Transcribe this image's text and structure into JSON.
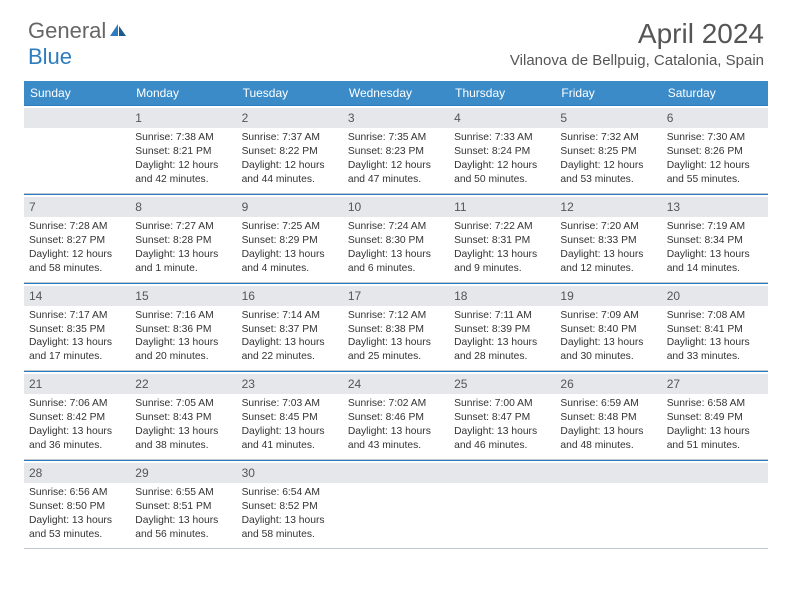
{
  "logo": {
    "text1": "General",
    "text2": "Blue"
  },
  "title": {
    "month": "April 2024",
    "location": "Vilanova de Bellpuig, Catalonia, Spain"
  },
  "colors": {
    "header_bg": "#3b8bc9",
    "header_text": "#ffffff",
    "week_top_border": "#2e7cc0",
    "week_bottom_border": "#bfc8d0",
    "num_band_bg": "#e5e7ea",
    "body_text": "#333333",
    "logo_blue": "#2e7cc0"
  },
  "days_of_week": [
    "Sunday",
    "Monday",
    "Tuesday",
    "Wednesday",
    "Thursday",
    "Friday",
    "Saturday"
  ],
  "weeks": [
    [
      {
        "n": "",
        "sr": "",
        "ss": "",
        "dl1": "",
        "dl2": ""
      },
      {
        "n": "1",
        "sr": "Sunrise: 7:38 AM",
        "ss": "Sunset: 8:21 PM",
        "dl1": "Daylight: 12 hours",
        "dl2": "and 42 minutes."
      },
      {
        "n": "2",
        "sr": "Sunrise: 7:37 AM",
        "ss": "Sunset: 8:22 PM",
        "dl1": "Daylight: 12 hours",
        "dl2": "and 44 minutes."
      },
      {
        "n": "3",
        "sr": "Sunrise: 7:35 AM",
        "ss": "Sunset: 8:23 PM",
        "dl1": "Daylight: 12 hours",
        "dl2": "and 47 minutes."
      },
      {
        "n": "4",
        "sr": "Sunrise: 7:33 AM",
        "ss": "Sunset: 8:24 PM",
        "dl1": "Daylight: 12 hours",
        "dl2": "and 50 minutes."
      },
      {
        "n": "5",
        "sr": "Sunrise: 7:32 AM",
        "ss": "Sunset: 8:25 PM",
        "dl1": "Daylight: 12 hours",
        "dl2": "and 53 minutes."
      },
      {
        "n": "6",
        "sr": "Sunrise: 7:30 AM",
        "ss": "Sunset: 8:26 PM",
        "dl1": "Daylight: 12 hours",
        "dl2": "and 55 minutes."
      }
    ],
    [
      {
        "n": "7",
        "sr": "Sunrise: 7:28 AM",
        "ss": "Sunset: 8:27 PM",
        "dl1": "Daylight: 12 hours",
        "dl2": "and 58 minutes."
      },
      {
        "n": "8",
        "sr": "Sunrise: 7:27 AM",
        "ss": "Sunset: 8:28 PM",
        "dl1": "Daylight: 13 hours",
        "dl2": "and 1 minute."
      },
      {
        "n": "9",
        "sr": "Sunrise: 7:25 AM",
        "ss": "Sunset: 8:29 PM",
        "dl1": "Daylight: 13 hours",
        "dl2": "and 4 minutes."
      },
      {
        "n": "10",
        "sr": "Sunrise: 7:24 AM",
        "ss": "Sunset: 8:30 PM",
        "dl1": "Daylight: 13 hours",
        "dl2": "and 6 minutes."
      },
      {
        "n": "11",
        "sr": "Sunrise: 7:22 AM",
        "ss": "Sunset: 8:31 PM",
        "dl1": "Daylight: 13 hours",
        "dl2": "and 9 minutes."
      },
      {
        "n": "12",
        "sr": "Sunrise: 7:20 AM",
        "ss": "Sunset: 8:33 PM",
        "dl1": "Daylight: 13 hours",
        "dl2": "and 12 minutes."
      },
      {
        "n": "13",
        "sr": "Sunrise: 7:19 AM",
        "ss": "Sunset: 8:34 PM",
        "dl1": "Daylight: 13 hours",
        "dl2": "and 14 minutes."
      }
    ],
    [
      {
        "n": "14",
        "sr": "Sunrise: 7:17 AM",
        "ss": "Sunset: 8:35 PM",
        "dl1": "Daylight: 13 hours",
        "dl2": "and 17 minutes."
      },
      {
        "n": "15",
        "sr": "Sunrise: 7:16 AM",
        "ss": "Sunset: 8:36 PM",
        "dl1": "Daylight: 13 hours",
        "dl2": "and 20 minutes."
      },
      {
        "n": "16",
        "sr": "Sunrise: 7:14 AM",
        "ss": "Sunset: 8:37 PM",
        "dl1": "Daylight: 13 hours",
        "dl2": "and 22 minutes."
      },
      {
        "n": "17",
        "sr": "Sunrise: 7:12 AM",
        "ss": "Sunset: 8:38 PM",
        "dl1": "Daylight: 13 hours",
        "dl2": "and 25 minutes."
      },
      {
        "n": "18",
        "sr": "Sunrise: 7:11 AM",
        "ss": "Sunset: 8:39 PM",
        "dl1": "Daylight: 13 hours",
        "dl2": "and 28 minutes."
      },
      {
        "n": "19",
        "sr": "Sunrise: 7:09 AM",
        "ss": "Sunset: 8:40 PM",
        "dl1": "Daylight: 13 hours",
        "dl2": "and 30 minutes."
      },
      {
        "n": "20",
        "sr": "Sunrise: 7:08 AM",
        "ss": "Sunset: 8:41 PM",
        "dl1": "Daylight: 13 hours",
        "dl2": "and 33 minutes."
      }
    ],
    [
      {
        "n": "21",
        "sr": "Sunrise: 7:06 AM",
        "ss": "Sunset: 8:42 PM",
        "dl1": "Daylight: 13 hours",
        "dl2": "and 36 minutes."
      },
      {
        "n": "22",
        "sr": "Sunrise: 7:05 AM",
        "ss": "Sunset: 8:43 PM",
        "dl1": "Daylight: 13 hours",
        "dl2": "and 38 minutes."
      },
      {
        "n": "23",
        "sr": "Sunrise: 7:03 AM",
        "ss": "Sunset: 8:45 PM",
        "dl1": "Daylight: 13 hours",
        "dl2": "and 41 minutes."
      },
      {
        "n": "24",
        "sr": "Sunrise: 7:02 AM",
        "ss": "Sunset: 8:46 PM",
        "dl1": "Daylight: 13 hours",
        "dl2": "and 43 minutes."
      },
      {
        "n": "25",
        "sr": "Sunrise: 7:00 AM",
        "ss": "Sunset: 8:47 PM",
        "dl1": "Daylight: 13 hours",
        "dl2": "and 46 minutes."
      },
      {
        "n": "26",
        "sr": "Sunrise: 6:59 AM",
        "ss": "Sunset: 8:48 PM",
        "dl1": "Daylight: 13 hours",
        "dl2": "and 48 minutes."
      },
      {
        "n": "27",
        "sr": "Sunrise: 6:58 AM",
        "ss": "Sunset: 8:49 PM",
        "dl1": "Daylight: 13 hours",
        "dl2": "and 51 minutes."
      }
    ],
    [
      {
        "n": "28",
        "sr": "Sunrise: 6:56 AM",
        "ss": "Sunset: 8:50 PM",
        "dl1": "Daylight: 13 hours",
        "dl2": "and 53 minutes."
      },
      {
        "n": "29",
        "sr": "Sunrise: 6:55 AM",
        "ss": "Sunset: 8:51 PM",
        "dl1": "Daylight: 13 hours",
        "dl2": "and 56 minutes."
      },
      {
        "n": "30",
        "sr": "Sunrise: 6:54 AM",
        "ss": "Sunset: 8:52 PM",
        "dl1": "Daylight: 13 hours",
        "dl2": "and 58 minutes."
      },
      {
        "n": "",
        "sr": "",
        "ss": "",
        "dl1": "",
        "dl2": ""
      },
      {
        "n": "",
        "sr": "",
        "ss": "",
        "dl1": "",
        "dl2": ""
      },
      {
        "n": "",
        "sr": "",
        "ss": "",
        "dl1": "",
        "dl2": ""
      },
      {
        "n": "",
        "sr": "",
        "ss": "",
        "dl1": "",
        "dl2": ""
      }
    ]
  ]
}
